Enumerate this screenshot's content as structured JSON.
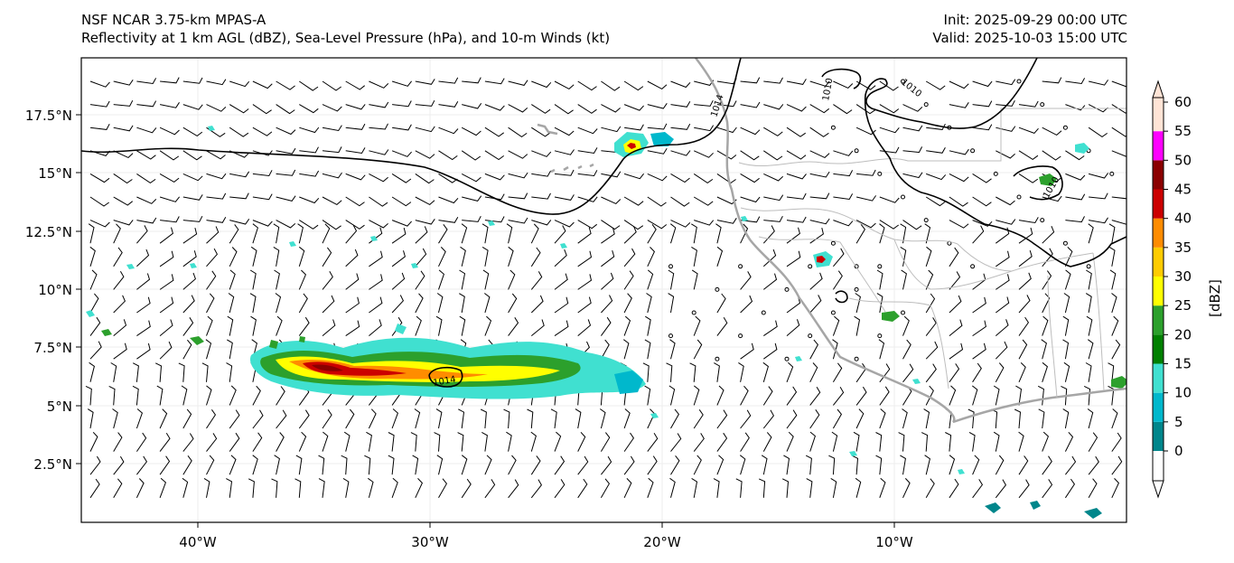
{
  "header": {
    "model": "NSF NCAR 3.75-km MPAS-A",
    "fields": "Reflectivity at 1 km AGL (dBZ), Sea-Level Pressure (hPa), and 10-m Winds (kt)",
    "init": "Init: 2025-09-29 00:00 UTC",
    "valid": "Valid: 2025-10-03 15:00 UTC"
  },
  "map": {
    "lon_range": [
      -45,
      0
    ],
    "lat_range": [
      0,
      20
    ],
    "y_ticks": [
      "17.5°N",
      "15°N",
      "12.5°N",
      "10°N",
      "7.5°N",
      "5°N",
      "2.5°N"
    ],
    "x_ticks": [
      "40°W",
      "30°W",
      "20°W",
      "10°W"
    ],
    "isobar_labels": [
      "1014",
      "1010",
      "1010",
      "1010",
      "1014"
    ],
    "colors": {
      "coast": "#a6a6a6",
      "border": "#b8b8b8",
      "isobar": "#000000",
      "grid": "#eeeeee"
    }
  },
  "colorbar": {
    "label": "[dBZ]",
    "ticks": [
      "0",
      "5",
      "10",
      "15",
      "20",
      "25",
      "30",
      "35",
      "40",
      "45",
      "50",
      "55",
      "60"
    ],
    "colors": [
      "#ffffff",
      "#00868b",
      "#00b8cc",
      "#40e0d0",
      "#008000",
      "#2ca02c",
      "#ffff00",
      "#ffcc00",
      "#ff8c00",
      "#cc0000",
      "#8b0000",
      "#ff00ff",
      "#ffe4d6"
    ]
  },
  "wind_barbs": {
    "description_units": "kt"
  }
}
